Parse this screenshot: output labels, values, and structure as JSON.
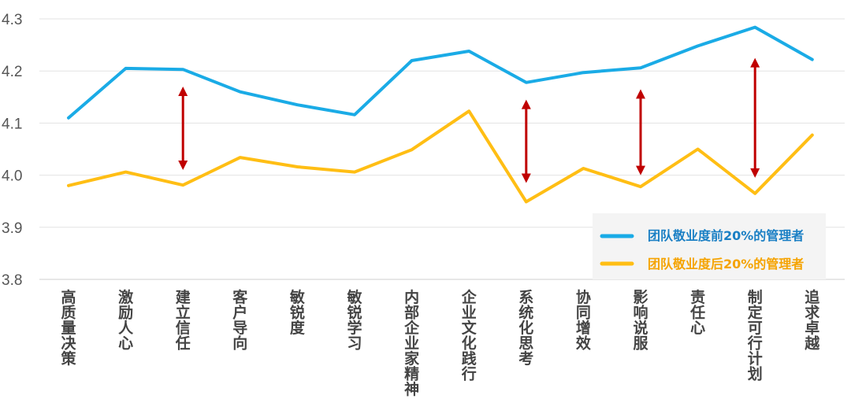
{
  "chart_data": {
    "type": "line",
    "title": "",
    "xlabel": "",
    "ylabel": "",
    "ylim": [
      3.8,
      4.3
    ],
    "yticks": [
      "3.8",
      "3.9",
      "4.0",
      "4.1",
      "4.2",
      "4.3"
    ],
    "grid": true,
    "legend_position": "bottom-right",
    "categories": [
      "高质量决策",
      "激励人心",
      "建立信任",
      "客户导向",
      "敏锐度",
      "敏锐学习",
      "内部企业家精神",
      "企业文化践行",
      "系统化思考",
      "协同增效",
      "影响说服",
      "责任心",
      "制定可行计划",
      "追求卓越"
    ],
    "series": [
      {
        "name": "团队敬业度前20%的管理者",
        "color": "#1aabe6",
        "values": [
          4.11,
          4.205,
          4.203,
          4.16,
          4.135,
          4.116,
          4.22,
          4.238,
          4.178,
          4.197,
          4.206,
          4.248,
          4.284,
          4.222
        ]
      },
      {
        "name": "团队敬业度后20%的管理者",
        "color": "#ffbe14",
        "values": [
          3.98,
          4.006,
          3.981,
          4.034,
          4.016,
          4.006,
          4.049,
          4.123,
          3.949,
          4.013,
          3.978,
          4.05,
          3.965,
          4.077
        ]
      }
    ],
    "annotations": {
      "type": "double-arrow",
      "color": "#c00000",
      "arrows": [
        {
          "category": "建立信任",
          "from": 4.01,
          "to": 4.17
        },
        {
          "category": "系统化思考",
          "from": 3.985,
          "to": 4.145
        },
        {
          "category": "影响说服",
          "from": 4.0,
          "to": 4.165
        },
        {
          "category": "制定可行计划",
          "from": 3.995,
          "to": 4.225
        }
      ]
    }
  }
}
